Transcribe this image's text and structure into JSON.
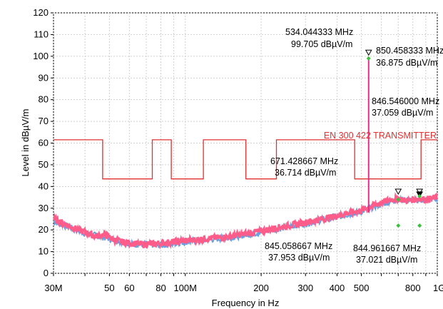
{
  "chart_data": {
    "type": "line",
    "xlabel": "Frequency in Hz",
    "ylabel": "Level in dBµV/m",
    "xscale": "log",
    "xlim": [
      30,
      1000
    ],
    "ylim": [
      0,
      120
    ],
    "grid": true,
    "x_ticks": [
      {
        "value": 30,
        "label": "30M"
      },
      {
        "value": 50,
        "label": "50"
      },
      {
        "value": 60,
        "label": "60"
      },
      {
        "value": 80,
        "label": "80"
      },
      {
        "value": 100,
        "label": "100M"
      },
      {
        "value": 200,
        "label": "200"
      },
      {
        "value": 300,
        "label": "300"
      },
      {
        "value": 400,
        "label": "400"
      },
      {
        "value": 500,
        "label": "500"
      },
      {
        "value": 800,
        "label": "800"
      },
      {
        "value": 1000,
        "label": "1G"
      }
    ],
    "y_ticks": [
      0,
      10,
      20,
      30,
      40,
      50,
      60,
      70,
      80,
      90,
      100,
      110,
      120
    ],
    "limit_line": {
      "name": "EN 300 422 TRANSMITTER",
      "color": "#e03030",
      "points": [
        [
          30,
          61.5
        ],
        [
          47,
          61.5
        ],
        [
          47,
          43.5
        ],
        [
          74,
          43.5
        ],
        [
          74,
          61.5
        ],
        [
          88,
          61.5
        ],
        [
          88,
          43.5
        ],
        [
          118,
          43.5
        ],
        [
          118,
          61.5
        ],
        [
          174,
          61.5
        ],
        [
          174,
          43.5
        ],
        [
          230,
          43.5
        ],
        [
          230,
          61.5
        ],
        [
          470,
          61.5
        ],
        [
          470,
          43.5
        ],
        [
          862,
          43.5
        ],
        [
          862,
          61.5
        ],
        [
          1000,
          61.5
        ]
      ]
    },
    "series": [
      {
        "color": "#ff5c8a",
        "x": [
          30,
          33,
          36,
          40,
          44,
          48,
          52,
          56,
          60,
          65,
          70,
          75,
          80,
          90,
          100,
          110,
          120,
          140,
          160,
          180,
          200,
          230,
          260,
          300,
          350,
          400,
          450,
          500,
          550,
          600,
          650,
          700,
          750,
          800,
          850,
          900,
          950,
          1000
        ],
        "values": [
          25,
          23,
          21,
          19,
          17,
          18,
          15.5,
          14.5,
          14,
          13.5,
          13.5,
          13.5,
          14,
          14.5,
          15,
          15.5,
          16,
          16.5,
          17.5,
          18.5,
          19.5,
          21,
          22,
          23.5,
          25,
          26.5,
          28,
          29,
          31,
          32.5,
          34,
          34.5,
          33.5,
          34,
          34.5,
          34,
          34.5,
          35
        ]
      },
      {
        "color": "#6aa0e0",
        "x": [
          30,
          40,
          50,
          60,
          80,
          100,
          150,
          200,
          300,
          400,
          500,
          600,
          700,
          800,
          900,
          1000
        ],
        "values": [
          24,
          18.5,
          16,
          13.5,
          13,
          14.5,
          16.5,
          19,
          23,
          26,
          28.5,
          32,
          34,
          33.5,
          34,
          34.5
        ]
      }
    ],
    "peak_line": {
      "x": 534.044333,
      "value": 99.705,
      "color": "#e0308a"
    },
    "markers": [
      {
        "x": 534.044333,
        "value": 101.5,
        "symbol": "triangle-down-open"
      },
      {
        "x": 700,
        "value": 37.5,
        "symbol": "triangle-down-open"
      },
      {
        "x": 850.458333,
        "value": 37.5,
        "symbol": "triangle-down-open"
      },
      {
        "x": 850.458333,
        "value": 36.2,
        "symbol": "triangle-down"
      },
      {
        "x": 534.044333,
        "value": 99,
        "symbol": "diamond"
      },
      {
        "x": 700,
        "value": 22,
        "symbol": "diamond"
      },
      {
        "x": 850.458333,
        "value": 22,
        "symbol": "diamond"
      },
      {
        "x": 700,
        "value": 34,
        "symbol": "diamond"
      },
      {
        "x": 850.458333,
        "value": 35.5,
        "symbol": "diamond"
      }
    ],
    "annotations": [
      {
        "freq": "534.044333 MHz",
        "level": "99.705 dBµV/m"
      },
      {
        "freq": "850.458333 MHz",
        "level": "36.875 dBµV/m"
      },
      {
        "freq": "846.546000 MHz",
        "level": "37.059 dBµV/m"
      },
      {
        "freq": "671.428667 MHz",
        "level": "36.714 dBµV/m"
      },
      {
        "freq": "845.058667 MHz",
        "level": "37.953 dBµV/m"
      },
      {
        "freq": "844.961667 MHz",
        "level": "37.021 dBµV/m"
      }
    ]
  }
}
